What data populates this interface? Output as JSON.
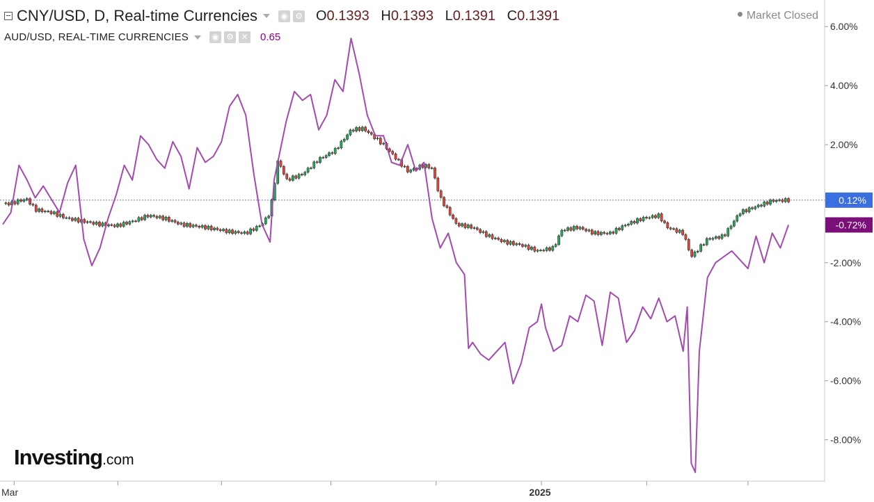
{
  "header": {
    "title": "CNY/USD, D, Real-time Currencies",
    "ohlc": [
      {
        "key": "O",
        "value": "0.1393"
      },
      {
        "key": "H",
        "value": "0.1393"
      },
      {
        "key": "L",
        "value": "0.1391"
      },
      {
        "key": "C",
        "value": "0.1391"
      }
    ],
    "market_status": "Market Closed"
  },
  "overlay": {
    "title": "AUD/USD, REAL-TIME CURRENCIES",
    "last_value": "0.65"
  },
  "logo": {
    "main": "Investing",
    "suffix": ".com"
  },
  "colors": {
    "up": "#26a65b",
    "down": "#e0453b",
    "overlay_line": "#a349b0",
    "badge_primary": "#3b6fe0",
    "badge_overlay": "#7a0f7a",
    "baseline": "#5577dd"
  },
  "chart_data": {
    "type": "line",
    "y_unit": "%",
    "ylim": [
      -9.4,
      6.9
    ],
    "y_ticks": [
      6,
      4,
      2,
      -2,
      -4,
      -6,
      -8
    ],
    "y_tick_labels": [
      "6.00%",
      "4.00%",
      "2.00%",
      "-2.00%",
      "-4.00%",
      "-6.00%",
      "-8.00%"
    ],
    "x_labels": [
      {
        "label": "Mar",
        "index": 0
      },
      {
        "label": "2025",
        "index": 0.5
      }
    ],
    "last_labels": {
      "primary": "0.12%",
      "overlay": "-0.72%"
    },
    "series": [
      {
        "style": "candlestick",
        "points": [
          [
            0,
            0
          ],
          [
            0.01,
            0
          ],
          [
            0.02,
            0.1
          ],
          [
            0.03,
            0.15
          ],
          [
            0.04,
            -0.2
          ],
          [
            0.06,
            -0.3
          ],
          [
            0.08,
            -0.5
          ],
          [
            0.1,
            -0.6
          ],
          [
            0.12,
            -0.7
          ],
          [
            0.14,
            -0.75
          ],
          [
            0.16,
            -0.6
          ],
          [
            0.18,
            -0.4
          ],
          [
            0.2,
            -0.5
          ],
          [
            0.22,
            -0.7
          ],
          [
            0.25,
            -0.8
          ],
          [
            0.28,
            -0.95
          ],
          [
            0.3,
            -1.0
          ],
          [
            0.32,
            -0.7
          ],
          [
            0.33,
            -0.3
          ],
          [
            0.34,
            1.5
          ],
          [
            0.35,
            0.8
          ],
          [
            0.37,
            1.0
          ],
          [
            0.39,
            1.5
          ],
          [
            0.41,
            1.8
          ],
          [
            0.43,
            2.5
          ],
          [
            0.445,
            2.55
          ],
          [
            0.47,
            2.0
          ],
          [
            0.5,
            1.1
          ],
          [
            0.52,
            1.3
          ],
          [
            0.53,
            1.2
          ],
          [
            0.54,
            0.2
          ],
          [
            0.56,
            -0.7
          ],
          [
            0.58,
            -0.8
          ],
          [
            0.6,
            -1.1
          ],
          [
            0.62,
            -1.3
          ],
          [
            0.64,
            -1.4
          ],
          [
            0.66,
            -1.6
          ],
          [
            0.68,
            -1.5
          ],
          [
            0.69,
            -0.9
          ],
          [
            0.71,
            -0.8
          ],
          [
            0.73,
            -1.0
          ],
          [
            0.75,
            -1.0
          ],
          [
            0.77,
            -0.7
          ],
          [
            0.79,
            -0.5
          ],
          [
            0.81,
            -0.4
          ],
          [
            0.82,
            -0.8
          ],
          [
            0.84,
            -1.0
          ],
          [
            0.85,
            -1.8
          ],
          [
            0.87,
            -1.2
          ],
          [
            0.89,
            -1.1
          ],
          [
            0.91,
            -0.3
          ],
          [
            0.93,
            -0.1
          ],
          [
            0.95,
            0.1
          ],
          [
            0.97,
            0.12
          ]
        ]
      },
      {
        "style": "line",
        "points": [
          [
            0,
            -0.7
          ],
          [
            0.01,
            -0.3
          ],
          [
            0.02,
            1.3
          ],
          [
            0.03,
            0.8
          ],
          [
            0.04,
            0.2
          ],
          [
            0.05,
            0.6
          ],
          [
            0.07,
            -0.3
          ],
          [
            0.08,
            0.7
          ],
          [
            0.09,
            1.3
          ],
          [
            0.1,
            -1.2
          ],
          [
            0.11,
            -2.1
          ],
          [
            0.12,
            -1.5
          ],
          [
            0.13,
            -0.5
          ],
          [
            0.14,
            0.3
          ],
          [
            0.15,
            1.3
          ],
          [
            0.16,
            0.8
          ],
          [
            0.17,
            2.3
          ],
          [
            0.18,
            2.0
          ],
          [
            0.19,
            1.5
          ],
          [
            0.2,
            1.2
          ],
          [
            0.21,
            2.1
          ],
          [
            0.22,
            1.6
          ],
          [
            0.23,
            0.5
          ],
          [
            0.24,
            1.9
          ],
          [
            0.25,
            1.4
          ],
          [
            0.26,
            1.6
          ],
          [
            0.27,
            2.1
          ],
          [
            0.28,
            3.3
          ],
          [
            0.29,
            3.7
          ],
          [
            0.3,
            3.0
          ],
          [
            0.31,
            1.0
          ],
          [
            0.32,
            -0.7
          ],
          [
            0.33,
            -1.3
          ],
          [
            0.335,
            0.8
          ],
          [
            0.35,
            2.8
          ],
          [
            0.36,
            3.8
          ],
          [
            0.37,
            3.5
          ],
          [
            0.38,
            3.7
          ],
          [
            0.39,
            2.5
          ],
          [
            0.4,
            3.0
          ],
          [
            0.41,
            4.2
          ],
          [
            0.42,
            3.8
          ],
          [
            0.43,
            5.6
          ],
          [
            0.44,
            4.4
          ],
          [
            0.45,
            3.0
          ],
          [
            0.46,
            2.3
          ],
          [
            0.47,
            2.3
          ],
          [
            0.48,
            1.4
          ],
          [
            0.49,
            1.3
          ],
          [
            0.5,
            2.0
          ],
          [
            0.51,
            1.1
          ],
          [
            0.52,
            1.4
          ],
          [
            0.53,
            -0.5
          ],
          [
            0.54,
            -1.5
          ],
          [
            0.55,
            -1.0
          ],
          [
            0.56,
            -2.0
          ],
          [
            0.57,
            -2.4
          ],
          [
            0.575,
            -4.9
          ],
          [
            0.58,
            -4.7
          ],
          [
            0.59,
            -5.1
          ],
          [
            0.6,
            -5.3
          ],
          [
            0.61,
            -5.0
          ],
          [
            0.62,
            -4.7
          ],
          [
            0.63,
            -6.1
          ],
          [
            0.64,
            -5.4
          ],
          [
            0.65,
            -4.2
          ],
          [
            0.66,
            -4.0
          ],
          [
            0.665,
            -3.4
          ],
          [
            0.67,
            -4.2
          ],
          [
            0.68,
            -5.0
          ],
          [
            0.69,
            -4.8
          ],
          [
            0.7,
            -3.8
          ],
          [
            0.71,
            -4.0
          ],
          [
            0.72,
            -3.1
          ],
          [
            0.73,
            -3.3
          ],
          [
            0.74,
            -4.8
          ],
          [
            0.75,
            -3.0
          ],
          [
            0.76,
            -3.2
          ],
          [
            0.77,
            -4.7
          ],
          [
            0.78,
            -4.3
          ],
          [
            0.79,
            -3.5
          ],
          [
            0.8,
            -3.9
          ],
          [
            0.81,
            -3.2
          ],
          [
            0.82,
            -4.0
          ],
          [
            0.83,
            -3.8
          ],
          [
            0.84,
            -5.0
          ],
          [
            0.845,
            -3.5
          ],
          [
            0.85,
            -8.8
          ],
          [
            0.855,
            -9.1
          ],
          [
            0.86,
            -5.0
          ],
          [
            0.87,
            -2.5
          ],
          [
            0.88,
            -2.0
          ],
          [
            0.9,
            -1.6
          ],
          [
            0.92,
            -2.2
          ],
          [
            0.93,
            -1.1
          ],
          [
            0.94,
            -2.0
          ],
          [
            0.95,
            -1.0
          ],
          [
            0.96,
            -1.5
          ],
          [
            0.97,
            -0.72
          ]
        ]
      }
    ]
  }
}
